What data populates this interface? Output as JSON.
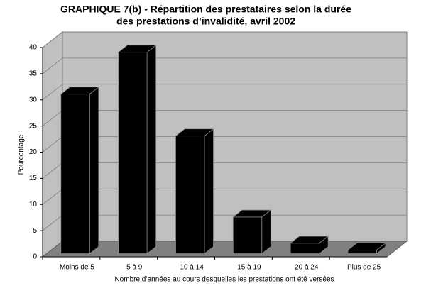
{
  "chart_data": {
    "type": "bar3d",
    "title": [
      "GRAPHIQUE 7(b) - Répartition des prestataires selon la durée",
      "des prestations d’invalidité, avril 2002"
    ],
    "x_label": "Nombre d’années au cours desquelles les prestations ont été versées",
    "y_label": "Pourcentage",
    "categories": [
      "Moins de 5",
      "5 à 9",
      "10 à 14",
      "15 à 19",
      "20 à 24",
      "Plus de 25"
    ],
    "values": [
      30.5,
      38.5,
      22.5,
      7,
      2,
      0.7
    ],
    "color": "#000000",
    "ylim": [
      0,
      40
    ],
    "yticks": [
      0,
      5,
      10,
      15,
      20,
      25,
      30,
      35,
      40
    ],
    "grid": true
  }
}
